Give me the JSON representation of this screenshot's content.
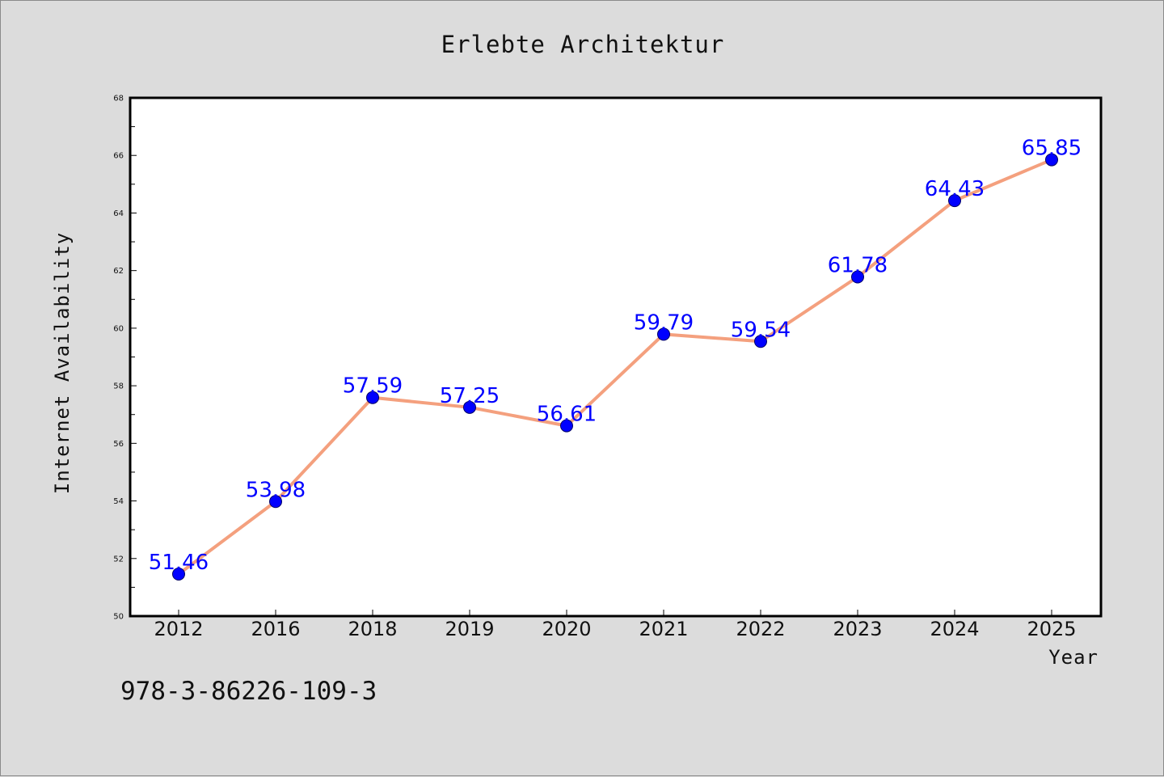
{
  "chart_data": {
    "type": "line",
    "title": "Erlebte Architektur",
    "xlabel": "Year",
    "ylabel": "Internet Availability",
    "categories": [
      "2012",
      "2016",
      "2018",
      "2019",
      "2020",
      "2021",
      "2022",
      "2023",
      "2024",
      "2025"
    ],
    "values": [
      51.46,
      53.98,
      57.59,
      57.25,
      56.61,
      59.79,
      59.54,
      61.78,
      64.43,
      65.85
    ],
    "data_labels": [
      "51.46",
      "53.98",
      "57.59",
      "57.25",
      "56.61",
      "59.79",
      "59.54",
      "61.78",
      "64.43",
      "65.85"
    ],
    "ylim": [
      50,
      68
    ],
    "yticks": [
      50,
      52,
      54,
      56,
      58,
      60,
      62,
      64,
      66,
      68
    ],
    "grid": false,
    "line_color": "#f4a07e",
    "marker_color": "#0000ff",
    "label_color": "#0000ff"
  },
  "footer": {
    "isbn": "978-3-86226-109-3"
  }
}
